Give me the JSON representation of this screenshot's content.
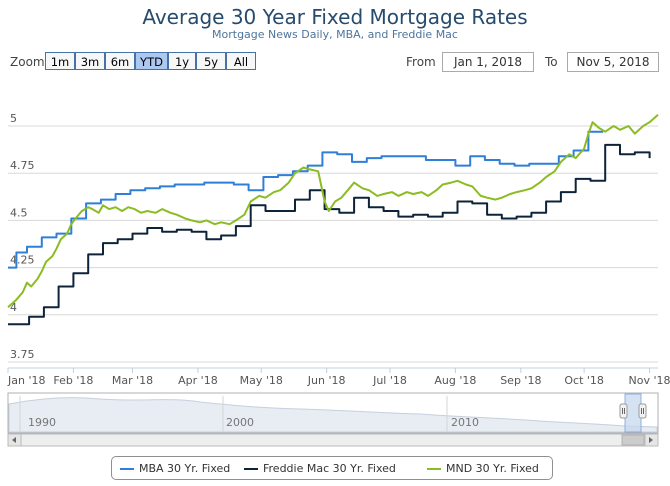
{
  "chart_title": "Average 30 Year Fixed Mortgage Rates",
  "chart_subtitle": "Mortgage News Daily, MBA, and Freddie Mac",
  "range_selector": {
    "zoom_label": "Zoom",
    "buttons": [
      "1m",
      "3m",
      "6m",
      "YTD",
      "1y",
      "5y",
      "All"
    ],
    "active": "YTD",
    "from_label": "From",
    "from_value": "Jan 1, 2018",
    "to_label": "To",
    "to_value": "Nov 5, 2018"
  },
  "navigator": {
    "year_labels": [
      "1990",
      "2000",
      "2010"
    ]
  },
  "colors": {
    "mba": "#2f7ed8",
    "freddie": "#0d233a",
    "mnd": "#8bbc21",
    "title": "#274b6d",
    "grid": "#d8d8d8"
  },
  "legend": {
    "items": [
      {
        "label": "MBA 30 Yr. Fixed",
        "color": "#2f7ed8"
      },
      {
        "label": "Freddie Mac 30 Yr. Fixed",
        "color": "#0d233a"
      },
      {
        "label": "MND 30 Yr. Fixed",
        "color": "#8bbc21"
      }
    ]
  },
  "chart_data": {
    "type": "line",
    "title": "Average 30 Year Fixed Mortgage Rates",
    "subtitle": "Mortgage News Daily, MBA, and Freddie Mac",
    "x_range": [
      "2018-01-01",
      "2018-11-05"
    ],
    "y_range": [
      3.75,
      5.0
    ],
    "y_ticks": [
      3.75,
      4,
      4.25,
      4.5,
      4.75,
      5
    ],
    "y_tick_labels": [
      "3.75",
      "4",
      "4.25",
      "4.5",
      "4.75",
      "5"
    ],
    "x_tick_labels": [
      "Jan '18",
      "Feb '18",
      "Mar '18",
      "Apr '18",
      "May '18",
      "Jun '18",
      "Jul '18",
      "Aug '18",
      "Sep '18",
      "Oct '18",
      "Nov '18"
    ],
    "x_tick_dates": [
      "2018-01-01",
      "2018-02-01",
      "2018-03-01",
      "2018-04-01",
      "2018-05-01",
      "2018-06-01",
      "2018-07-01",
      "2018-08-01",
      "2018-09-01",
      "2018-10-01",
      "2018-11-01"
    ],
    "grid": true,
    "step_series": [
      "MBA 30 Yr. Fixed",
      "Freddie Mac 30 Yr. Fixed"
    ],
    "series": [
      {
        "name": "MBA 30 Yr. Fixed",
        "color": "#2f7ed8",
        "points": [
          [
            "2018-01-01",
            4.25
          ],
          [
            "2018-01-05",
            4.33
          ],
          [
            "2018-01-10",
            4.36
          ],
          [
            "2018-01-17",
            4.41
          ],
          [
            "2018-01-24",
            4.43
          ],
          [
            "2018-01-31",
            4.51
          ],
          [
            "2018-02-07",
            4.59
          ],
          [
            "2018-02-14",
            4.61
          ],
          [
            "2018-02-21",
            4.64
          ],
          [
            "2018-02-28",
            4.66
          ],
          [
            "2018-03-07",
            4.67
          ],
          [
            "2018-03-14",
            4.68
          ],
          [
            "2018-03-21",
            4.69
          ],
          [
            "2018-03-28",
            4.69
          ],
          [
            "2018-04-04",
            4.7
          ],
          [
            "2018-04-11",
            4.7
          ],
          [
            "2018-04-18",
            4.69
          ],
          [
            "2018-04-25",
            4.66
          ],
          [
            "2018-05-02",
            4.73
          ],
          [
            "2018-05-09",
            4.74
          ],
          [
            "2018-05-16",
            4.76
          ],
          [
            "2018-05-23",
            4.79
          ],
          [
            "2018-05-30",
            4.86
          ],
          [
            "2018-06-06",
            4.85
          ],
          [
            "2018-06-13",
            4.81
          ],
          [
            "2018-06-20",
            4.83
          ],
          [
            "2018-06-27",
            4.84
          ],
          [
            "2018-07-04",
            4.84
          ],
          [
            "2018-07-11",
            4.84
          ],
          [
            "2018-07-18",
            4.82
          ],
          [
            "2018-07-25",
            4.82
          ],
          [
            "2018-08-01",
            4.79
          ],
          [
            "2018-08-08",
            4.84
          ],
          [
            "2018-08-15",
            4.82
          ],
          [
            "2018-08-22",
            4.8
          ],
          [
            "2018-08-29",
            4.79
          ],
          [
            "2018-09-05",
            4.8
          ],
          [
            "2018-09-12",
            4.8
          ],
          [
            "2018-09-19",
            4.84
          ],
          [
            "2018-09-26",
            4.87
          ],
          [
            "2018-10-03",
            4.97
          ],
          [
            "2018-10-10",
            4.97
          ]
        ]
      },
      {
        "name": "Freddie Mac 30 Yr. Fixed",
        "color": "#0d233a",
        "points": [
          [
            "2018-01-01",
            3.95
          ],
          [
            "2018-01-04",
            3.95
          ],
          [
            "2018-01-11",
            3.99
          ],
          [
            "2018-01-18",
            4.04
          ],
          [
            "2018-01-25",
            4.15
          ],
          [
            "2018-02-01",
            4.22
          ],
          [
            "2018-02-08",
            4.32
          ],
          [
            "2018-02-15",
            4.38
          ],
          [
            "2018-02-22",
            4.4
          ],
          [
            "2018-03-01",
            4.43
          ],
          [
            "2018-03-08",
            4.46
          ],
          [
            "2018-03-15",
            4.44
          ],
          [
            "2018-03-22",
            4.45
          ],
          [
            "2018-03-29",
            4.44
          ],
          [
            "2018-04-05",
            4.4
          ],
          [
            "2018-04-12",
            4.42
          ],
          [
            "2018-04-19",
            4.47
          ],
          [
            "2018-04-26",
            4.58
          ],
          [
            "2018-05-03",
            4.55
          ],
          [
            "2018-05-10",
            4.55
          ],
          [
            "2018-05-17",
            4.61
          ],
          [
            "2018-05-24",
            4.66
          ],
          [
            "2018-05-31",
            4.56
          ],
          [
            "2018-06-07",
            4.54
          ],
          [
            "2018-06-14",
            4.62
          ],
          [
            "2018-06-21",
            4.57
          ],
          [
            "2018-06-28",
            4.55
          ],
          [
            "2018-07-05",
            4.52
          ],
          [
            "2018-07-12",
            4.53
          ],
          [
            "2018-07-19",
            4.52
          ],
          [
            "2018-07-26",
            4.54
          ],
          [
            "2018-08-02",
            4.6
          ],
          [
            "2018-08-09",
            4.59
          ],
          [
            "2018-08-16",
            4.53
          ],
          [
            "2018-08-23",
            4.51
          ],
          [
            "2018-08-30",
            4.52
          ],
          [
            "2018-09-06",
            4.54
          ],
          [
            "2018-09-13",
            4.6
          ],
          [
            "2018-09-20",
            4.65
          ],
          [
            "2018-09-27",
            4.72
          ],
          [
            "2018-10-04",
            4.71
          ],
          [
            "2018-10-11",
            4.9
          ],
          [
            "2018-10-18",
            4.85
          ],
          [
            "2018-10-25",
            4.86
          ],
          [
            "2018-11-01",
            4.83
          ]
        ]
      },
      {
        "name": "MND 30 Yr. Fixed",
        "color": "#8bbc21",
        "points": [
          [
            "2018-01-01",
            4.04
          ],
          [
            "2018-01-03",
            4.06
          ],
          [
            "2018-01-05",
            4.08
          ],
          [
            "2018-01-08",
            4.12
          ],
          [
            "2018-01-10",
            4.17
          ],
          [
            "2018-01-12",
            4.15
          ],
          [
            "2018-01-15",
            4.19
          ],
          [
            "2018-01-17",
            4.23
          ],
          [
            "2018-01-19",
            4.28
          ],
          [
            "2018-01-22",
            4.31
          ],
          [
            "2018-01-24",
            4.35
          ],
          [
            "2018-01-26",
            4.4
          ],
          [
            "2018-01-29",
            4.43
          ],
          [
            "2018-01-31",
            4.48
          ],
          [
            "2018-02-02",
            4.51
          ],
          [
            "2018-02-05",
            4.55
          ],
          [
            "2018-02-08",
            4.57
          ],
          [
            "2018-02-10",
            4.56
          ],
          [
            "2018-02-13",
            4.54
          ],
          [
            "2018-02-15",
            4.58
          ],
          [
            "2018-02-18",
            4.56
          ],
          [
            "2018-02-21",
            4.57
          ],
          [
            "2018-02-24",
            4.55
          ],
          [
            "2018-02-27",
            4.57
          ],
          [
            "2018-03-02",
            4.56
          ],
          [
            "2018-03-05",
            4.54
          ],
          [
            "2018-03-08",
            4.55
          ],
          [
            "2018-03-12",
            4.54
          ],
          [
            "2018-03-15",
            4.56
          ],
          [
            "2018-03-19",
            4.54
          ],
          [
            "2018-03-22",
            4.53
          ],
          [
            "2018-03-26",
            4.51
          ],
          [
            "2018-03-29",
            4.5
          ],
          [
            "2018-04-02",
            4.49
          ],
          [
            "2018-04-05",
            4.5
          ],
          [
            "2018-04-09",
            4.48
          ],
          [
            "2018-04-12",
            4.49
          ],
          [
            "2018-04-16",
            4.48
          ],
          [
            "2018-04-19",
            4.5
          ],
          [
            "2018-04-23",
            4.53
          ],
          [
            "2018-04-26",
            4.6
          ],
          [
            "2018-04-30",
            4.63
          ],
          [
            "2018-05-03",
            4.62
          ],
          [
            "2018-05-07",
            4.65
          ],
          [
            "2018-05-10",
            4.66
          ],
          [
            "2018-05-14",
            4.7
          ],
          [
            "2018-05-17",
            4.75
          ],
          [
            "2018-05-21",
            4.78
          ],
          [
            "2018-05-24",
            4.77
          ],
          [
            "2018-05-28",
            4.76
          ],
          [
            "2018-05-31",
            4.6
          ],
          [
            "2018-06-02",
            4.55
          ],
          [
            "2018-06-05",
            4.6
          ],
          [
            "2018-06-08",
            4.62
          ],
          [
            "2018-06-11",
            4.66
          ],
          [
            "2018-06-14",
            4.7
          ],
          [
            "2018-06-18",
            4.67
          ],
          [
            "2018-06-21",
            4.66
          ],
          [
            "2018-06-25",
            4.63
          ],
          [
            "2018-06-28",
            4.64
          ],
          [
            "2018-07-02",
            4.65
          ],
          [
            "2018-07-05",
            4.63
          ],
          [
            "2018-07-09",
            4.65
          ],
          [
            "2018-07-12",
            4.64
          ],
          [
            "2018-07-16",
            4.65
          ],
          [
            "2018-07-19",
            4.63
          ],
          [
            "2018-07-23",
            4.66
          ],
          [
            "2018-07-26",
            4.69
          ],
          [
            "2018-07-30",
            4.7
          ],
          [
            "2018-08-02",
            4.71
          ],
          [
            "2018-08-06",
            4.69
          ],
          [
            "2018-08-09",
            4.68
          ],
          [
            "2018-08-13",
            4.63
          ],
          [
            "2018-08-16",
            4.62
          ],
          [
            "2018-08-20",
            4.61
          ],
          [
            "2018-08-23",
            4.62
          ],
          [
            "2018-08-27",
            4.64
          ],
          [
            "2018-08-30",
            4.65
          ],
          [
            "2018-09-03",
            4.66
          ],
          [
            "2018-09-06",
            4.67
          ],
          [
            "2018-09-10",
            4.7
          ],
          [
            "2018-09-13",
            4.73
          ],
          [
            "2018-09-17",
            4.76
          ],
          [
            "2018-09-20",
            4.81
          ],
          [
            "2018-09-24",
            4.85
          ],
          [
            "2018-09-27",
            4.83
          ],
          [
            "2018-10-01",
            4.88
          ],
          [
            "2018-10-03",
            4.96
          ],
          [
            "2018-10-05",
            5.02
          ],
          [
            "2018-10-08",
            4.99
          ],
          [
            "2018-10-11",
            4.97
          ],
          [
            "2018-10-15",
            5.0
          ],
          [
            "2018-10-18",
            4.98
          ],
          [
            "2018-10-22",
            5.0
          ],
          [
            "2018-10-25",
            4.96
          ],
          [
            "2018-10-29",
            5.0
          ],
          [
            "2018-11-01",
            5.02
          ],
          [
            "2018-11-05",
            5.06
          ]
        ]
      }
    ]
  }
}
